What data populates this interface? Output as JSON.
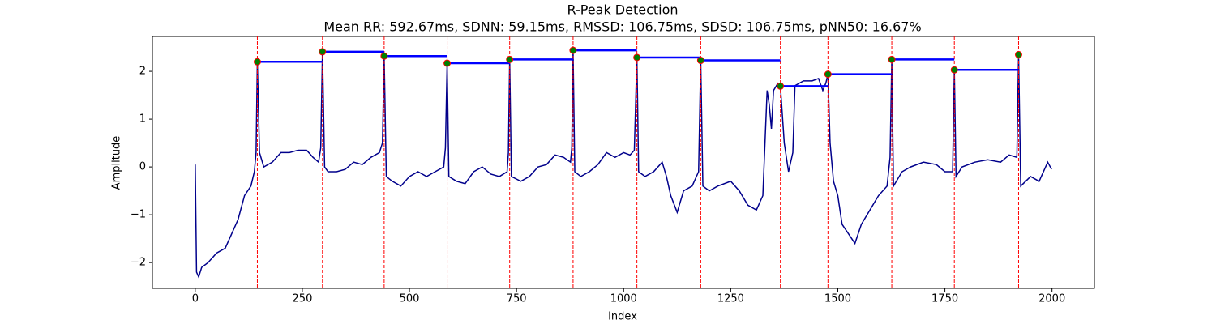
{
  "chart_data": {
    "type": "line",
    "title": "R-Peak Detection",
    "subtitle": "Mean RR: 592.67ms, SDNN: 59.15ms, RMSSD: 106.75ms, SDSD: 106.75ms, pNN50: 16.67%",
    "x_label": "Index",
    "y_label": "Amplitude",
    "xlim": [
      -100,
      2099
    ],
    "ylim": [
      -2.54,
      2.73
    ],
    "xticks": [
      0,
      250,
      500,
      750,
      1000,
      1250,
      1500,
      1750,
      2000
    ],
    "yticks": [
      {
        "value": -2,
        "label": "−2"
      },
      {
        "value": -1,
        "label": "−1"
      },
      0,
      1,
      2
    ],
    "signal": {
      "color": "#00008b",
      "x": [
        0,
        3,
        8,
        15,
        30,
        50,
        70,
        90,
        100,
        115,
        130,
        138,
        142,
        145,
        150,
        160,
        180,
        200,
        220,
        240,
        260,
        275,
        288,
        293,
        297,
        302,
        310,
        330,
        350,
        370,
        390,
        410,
        430,
        437,
        441,
        446,
        460,
        480,
        500,
        520,
        540,
        560,
        580,
        584,
        588,
        592,
        610,
        630,
        650,
        670,
        690,
        710,
        728,
        731,
        734,
        738,
        760,
        780,
        800,
        820,
        840,
        860,
        876,
        879,
        882,
        886,
        900,
        920,
        940,
        960,
        980,
        1000,
        1015,
        1025,
        1031,
        1035,
        1050,
        1070,
        1090,
        1100,
        1110,
        1125,
        1140,
        1160,
        1175,
        1180,
        1185,
        1200,
        1220,
        1250,
        1270,
        1290,
        1310,
        1325,
        1330,
        1335,
        1340,
        1345,
        1350,
        1360,
        1366,
        1375,
        1385,
        1395,
        1400,
        1420,
        1440,
        1455,
        1465,
        1472,
        1477,
        1482,
        1490,
        1500,
        1510,
        1525,
        1540,
        1555,
        1575,
        1595,
        1615,
        1622,
        1626,
        1630,
        1650,
        1670,
        1700,
        1730,
        1750,
        1768,
        1772,
        1776,
        1790,
        1820,
        1850,
        1880,
        1900,
        1918,
        1922,
        1927,
        1950,
        1970,
        1990,
        1999
      ],
      "values": [
        0.05,
        -2.2,
        -2.3,
        -2.1,
        -2.0,
        -1.8,
        -1.7,
        -1.3,
        -1.1,
        -0.6,
        -0.4,
        -0.1,
        0.3,
        2.2,
        0.3,
        0.0,
        0.1,
        0.3,
        0.3,
        0.35,
        0.35,
        0.2,
        0.1,
        0.4,
        2.41,
        0.0,
        -0.1,
        -0.1,
        -0.05,
        0.1,
        0.05,
        0.2,
        0.3,
        0.5,
        2.32,
        -0.2,
        -0.3,
        -0.4,
        -0.2,
        -0.1,
        -0.2,
        -0.1,
        0.0,
        0.4,
        2.17,
        -0.2,
        -0.3,
        -0.35,
        -0.1,
        0.0,
        -0.15,
        -0.2,
        -0.1,
        0.3,
        2.25,
        -0.2,
        -0.3,
        -0.2,
        0.0,
        0.05,
        0.25,
        0.2,
        0.1,
        0.4,
        2.44,
        -0.1,
        -0.2,
        -0.1,
        0.05,
        0.3,
        0.2,
        0.3,
        0.25,
        0.35,
        2.29,
        -0.1,
        -0.2,
        -0.1,
        0.1,
        -0.2,
        -0.6,
        -0.95,
        -0.5,
        -0.4,
        -0.1,
        2.23,
        -0.4,
        -0.5,
        -0.4,
        -0.3,
        -0.5,
        -0.8,
        -0.9,
        -0.6,
        0.5,
        1.6,
        1.3,
        0.8,
        1.6,
        1.75,
        1.69,
        0.5,
        -0.1,
        0.3,
        1.7,
        1.8,
        1.8,
        1.85,
        1.6,
        1.75,
        1.94,
        0.5,
        -0.3,
        -0.6,
        -1.2,
        -1.4,
        -1.6,
        -1.2,
        -0.9,
        -0.6,
        -0.4,
        0.2,
        2.25,
        -0.4,
        -0.1,
        0.0,
        0.1,
        0.05,
        -0.1,
        -0.1,
        2.03,
        -0.2,
        0.0,
        0.1,
        0.15,
        0.1,
        0.25,
        0.2,
        2.35,
        -0.4,
        -0.2,
        -0.3,
        0.1,
        -0.05
      ]
    },
    "peaks": {
      "color": "#008000",
      "edge_color": "#ff0000",
      "line_color": "#ff0000",
      "rr_color": "#0000ff",
      "x": [
        145,
        297,
        441,
        588,
        734,
        882,
        1031,
        1180,
        1366,
        1477,
        1626,
        1772,
        1922
      ],
      "values": [
        2.2,
        2.41,
        2.32,
        2.17,
        2.25,
        2.44,
        2.29,
        2.23,
        1.69,
        1.94,
        2.25,
        2.03,
        2.35
      ]
    }
  }
}
